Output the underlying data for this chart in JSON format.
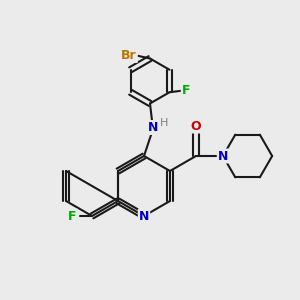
{
  "background_color": "#ebebeb",
  "bond_color": "#1a1a1a",
  "atom_colors": {
    "Br": "#b87800",
    "F": "#00aa00",
    "N": "#0000cc",
    "O": "#cc0000",
    "H": "#808080",
    "C": "#1a1a1a"
  },
  "figsize": [
    3.0,
    3.0
  ],
  "dpi": 100
}
